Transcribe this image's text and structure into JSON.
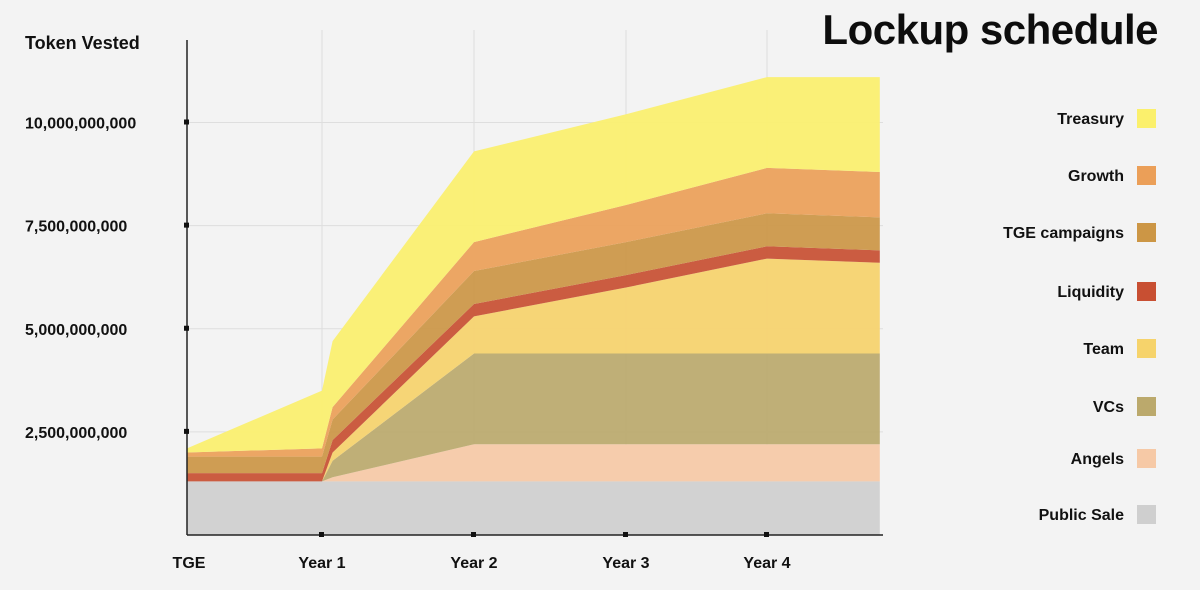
{
  "chart_data": {
    "type": "area",
    "stacked": true,
    "title": "Lockup schedule",
    "ylabel": "Token Vested",
    "xlabel": "",
    "categories": [
      "TGE",
      "Year 1",
      "Year 2",
      "Year 3",
      "Year 4"
    ],
    "ylim": [
      0,
      12000000000
    ],
    "y_ticks": [
      2500000000,
      5000000000,
      7500000000,
      10000000000
    ],
    "y_tick_labels": [
      "2,500,000,000",
      "5,000,000,000",
      "7,500,000,000",
      "10,000,000,000"
    ],
    "grid": true,
    "legend_position": "right",
    "x": [
      0,
      1,
      1.07,
      2,
      3,
      4,
      4.8
    ],
    "series": [
      {
        "name": "Public Sale",
        "color": "#cfcfcf",
        "values": [
          1300000000,
          1300000000,
          1300000000,
          1300000000,
          1300000000,
          1300000000,
          1300000000
        ]
      },
      {
        "name": "Angels",
        "color": "#f6c9a6",
        "values": [
          0,
          0,
          100000000,
          900000000,
          900000000,
          900000000,
          900000000
        ]
      },
      {
        "name": "VCs",
        "color": "#bba96c",
        "values": [
          0,
          0,
          400000000,
          2200000000,
          2200000000,
          2200000000,
          2200000000
        ]
      },
      {
        "name": "Team",
        "color": "#f6d36b",
        "values": [
          0,
          0,
          200000000,
          900000000,
          1600000000,
          2300000000,
          2200000000
        ]
      },
      {
        "name": "Liquidity",
        "color": "#c84f32",
        "values": [
          200000000,
          200000000,
          300000000,
          300000000,
          300000000,
          300000000,
          300000000
        ]
      },
      {
        "name": "TGE campaigns",
        "color": "#cc9645",
        "values": [
          400000000,
          400000000,
          500000000,
          800000000,
          800000000,
          800000000,
          800000000
        ]
      },
      {
        "name": "Growth",
        "color": "#eb9f58",
        "values": [
          100000000,
          200000000,
          300000000,
          700000000,
          900000000,
          1100000000,
          1100000000
        ]
      },
      {
        "name": "Treasury",
        "color": "#fbf06c",
        "values": [
          100000000,
          1400000000,
          1600000000,
          2200000000,
          2200000000,
          2200000000,
          2300000000
        ]
      }
    ]
  }
}
